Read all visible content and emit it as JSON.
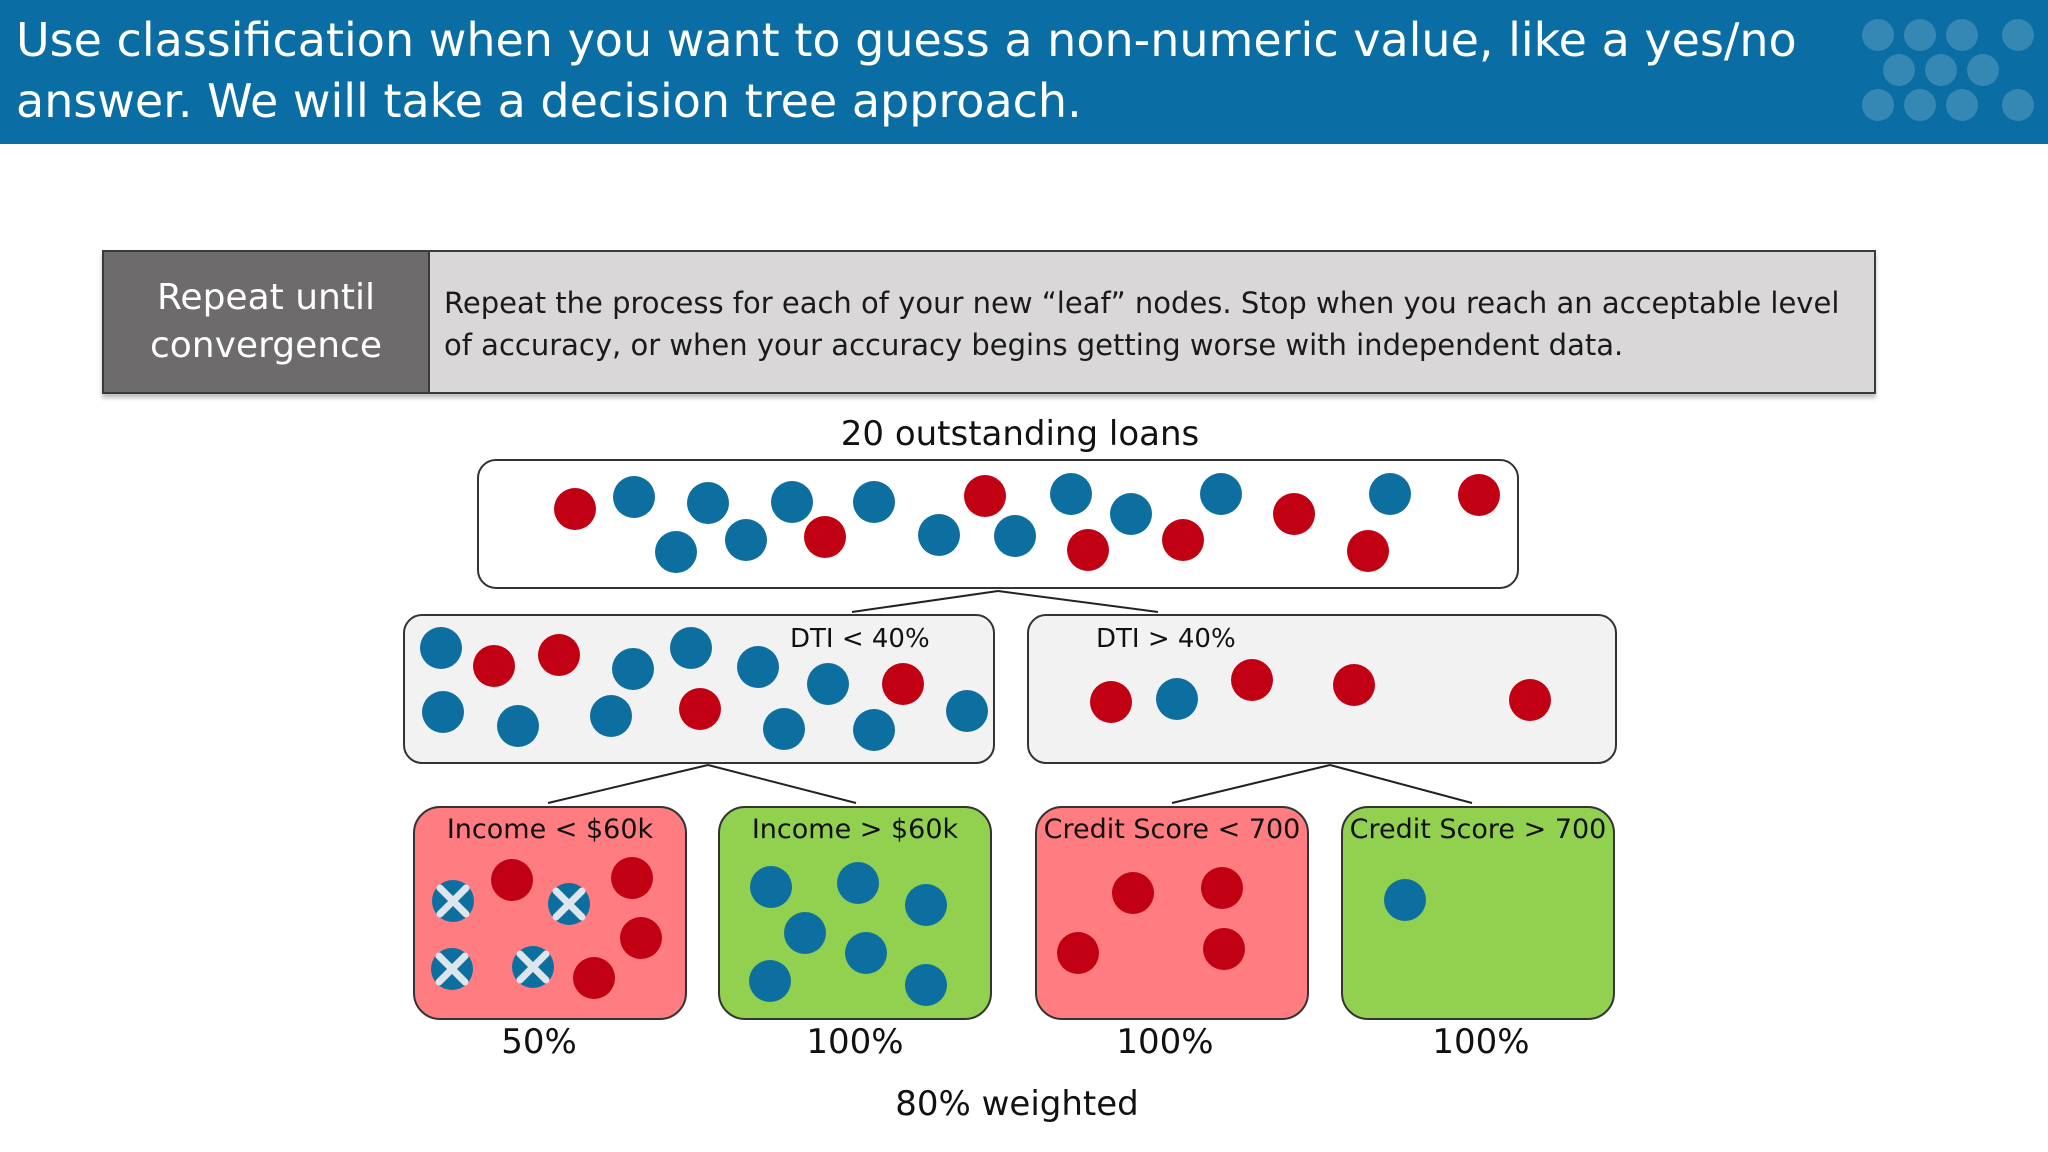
{
  "header": {
    "title": "Use classification when you want to guess a non-numeric value, like a yes/no answer. We will take a decision tree approach."
  },
  "step": {
    "label": "Repeat until convergence",
    "text": "Repeat the process for each of your new “leaf” nodes. Stop when you reach an acceptable level of accuracy, or when your accuracy begins getting worse with independent data."
  },
  "tree": {
    "root_caption": "20 outstanding loans",
    "split_left_label": "DTI < 40%",
    "split_right_label": "DTI > 40%",
    "leaves": [
      {
        "label": "Income < $60k",
        "accuracy": "50%"
      },
      {
        "label": "Income > $60k",
        "accuracy": "100%"
      },
      {
        "label": "Credit Score < 700",
        "accuracy": "100%"
      },
      {
        "label": "Credit Score > 700",
        "accuracy": "100%"
      }
    ],
    "summary": "80% weighted"
  },
  "colors": {
    "header_bg": "#0a6ea4",
    "blue_dot": "#0d6ea0",
    "red_dot": "#c10013",
    "leaf_red_bg": "#ff7c80",
    "leaf_green_bg": "#92d050"
  }
}
